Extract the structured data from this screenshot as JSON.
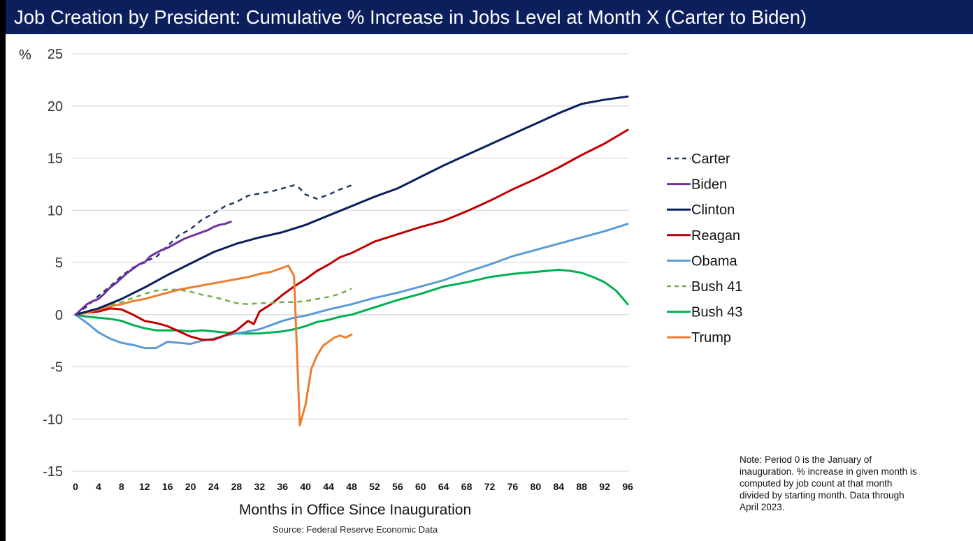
{
  "title": "Job Creation by President:  Cumulative % Increase in Jobs Level at Month X (Carter to Biden)",
  "note": "Note:  Period 0 is the January of inauguration.  % increase in given month is computed by job count at that month divided by starting month.  Data through April 2023.",
  "source": "Source:  Federal Reserve Economic Data",
  "chart_data": {
    "type": "line",
    "title": "Job Creation by President:  Cumulative % Increase in Jobs Level at Month X (Carter to Biden)",
    "xlabel": "Months in Office Since Inauguration",
    "ylabel": "%",
    "xlim": [
      0,
      96
    ],
    "ylim": [
      -15,
      25
    ],
    "x_ticks": [
      "0",
      "4",
      "8",
      "12",
      "16",
      "20",
      "24",
      "28",
      "32",
      "36",
      "40",
      "44",
      "48",
      "52",
      "56",
      "60",
      "64",
      "68",
      "72",
      "76",
      "80",
      "84",
      "88",
      "92",
      "96"
    ],
    "y_ticks": [
      "25",
      "20",
      "15",
      "10",
      "5",
      "0",
      "-5",
      "-10",
      "-15"
    ],
    "y_tick_values": [
      25,
      20,
      15,
      10,
      5,
      0,
      -5,
      -10,
      -15
    ],
    "grid": true,
    "legend_position": "right",
    "series": [
      {
        "name": "Carter",
        "color": "#1f3864",
        "dashed": true,
        "x": [
          0,
          2,
          4,
          6,
          8,
          10,
          12,
          14,
          16,
          18,
          20,
          22,
          24,
          26,
          27,
          28,
          30,
          32,
          34,
          36,
          38,
          39,
          40,
          42,
          44,
          46,
          48
        ],
        "values": [
          0,
          0.8,
          1.8,
          2.7,
          3.7,
          4.5,
          5.1,
          5.5,
          6.6,
          7.6,
          8.2,
          9.1,
          9.7,
          10.4,
          10.6,
          10.8,
          11.4,
          11.6,
          11.8,
          12.1,
          12.4,
          12.1,
          11.5,
          11.1,
          11.5,
          12.0,
          12.4
        ]
      },
      {
        "name": "Biden",
        "color": "#7030a0",
        "dashed": false,
        "x": [
          0,
          1,
          2,
          3,
          4,
          5,
          6,
          7,
          8,
          9,
          10,
          11,
          12,
          13,
          14,
          15,
          16,
          17,
          18,
          19,
          20,
          21,
          22,
          23,
          24,
          25,
          26,
          27
        ],
        "values": [
          0,
          0.5,
          1.0,
          1.3,
          1.5,
          2.0,
          2.6,
          3.0,
          3.5,
          4.0,
          4.4,
          4.8,
          5.0,
          5.6,
          5.9,
          6.2,
          6.4,
          6.7,
          7.0,
          7.3,
          7.5,
          7.7,
          7.9,
          8.1,
          8.4,
          8.6,
          8.7,
          8.9
        ]
      },
      {
        "name": "Clinton",
        "color": "#0b1f5c",
        "dashed": false,
        "x": [
          0,
          4,
          8,
          12,
          16,
          20,
          24,
          28,
          32,
          36,
          40,
          44,
          48,
          52,
          56,
          60,
          64,
          68,
          72,
          76,
          80,
          84,
          88,
          92,
          96
        ],
        "values": [
          0,
          0.6,
          1.5,
          2.6,
          3.8,
          4.9,
          6.0,
          6.8,
          7.4,
          7.9,
          8.6,
          9.5,
          10.4,
          11.3,
          12.1,
          13.2,
          14.3,
          15.3,
          16.3,
          17.3,
          18.3,
          19.3,
          20.2,
          20.6,
          20.9
        ]
      },
      {
        "name": "Reagan",
        "color": "#c00000",
        "dashed": false,
        "x": [
          0,
          2,
          4,
          6,
          8,
          10,
          12,
          14,
          16,
          18,
          20,
          22,
          24,
          26,
          28,
          30,
          31,
          32,
          34,
          36,
          38,
          40,
          42,
          44,
          46,
          48,
          52,
          56,
          60,
          64,
          68,
          72,
          76,
          80,
          84,
          88,
          92,
          96
        ],
        "values": [
          0,
          0.2,
          0.3,
          0.6,
          0.5,
          0.0,
          -0.6,
          -0.8,
          -1.1,
          -1.6,
          -2.1,
          -2.4,
          -2.4,
          -2.0,
          -1.5,
          -0.6,
          -0.9,
          0.3,
          1.0,
          1.9,
          2.7,
          3.4,
          4.2,
          4.8,
          5.5,
          5.9,
          7.0,
          7.7,
          8.4,
          9.0,
          9.9,
          10.9,
          12.0,
          13.0,
          14.1,
          15.3,
          16.4,
          17.7
        ]
      },
      {
        "name": "Obama",
        "color": "#5b9bd5",
        "dashed": false,
        "x": [
          0,
          2,
          4,
          6,
          8,
          10,
          12,
          14,
          16,
          18,
          20,
          22,
          24,
          26,
          28,
          30,
          32,
          34,
          36,
          38,
          40,
          44,
          48,
          52,
          56,
          60,
          64,
          68,
          72,
          76,
          80,
          84,
          88,
          92,
          96
        ],
        "values": [
          0,
          -0.8,
          -1.7,
          -2.3,
          -2.7,
          -2.9,
          -3.2,
          -3.2,
          -2.6,
          -2.7,
          -2.8,
          -2.5,
          -2.3,
          -2.0,
          -1.8,
          -1.6,
          -1.4,
          -1.0,
          -0.6,
          -0.3,
          -0.1,
          0.5,
          1.0,
          1.6,
          2.1,
          2.7,
          3.3,
          4.1,
          4.8,
          5.6,
          6.2,
          6.8,
          7.4,
          8.0,
          8.7
        ]
      },
      {
        "name": "Bush 41",
        "color": "#70ad47",
        "dashed": true,
        "x": [
          0,
          2,
          4,
          6,
          8,
          10,
          12,
          14,
          16,
          18,
          20,
          22,
          24,
          26,
          28,
          30,
          32,
          34,
          36,
          38,
          40,
          42,
          44,
          46,
          48
        ],
        "values": [
          0,
          0.3,
          0.6,
          0.9,
          1.2,
          1.6,
          2.0,
          2.3,
          2.4,
          2.4,
          2.2,
          1.9,
          1.7,
          1.4,
          1.1,
          1.0,
          1.1,
          1.1,
          1.2,
          1.2,
          1.3,
          1.5,
          1.7,
          2.0,
          2.5
        ]
      },
      {
        "name": "Bush 43",
        "color": "#00b050",
        "dashed": false,
        "x": [
          0,
          2,
          4,
          6,
          8,
          10,
          12,
          14,
          16,
          18,
          20,
          22,
          24,
          26,
          28,
          30,
          32,
          34,
          36,
          38,
          40,
          42,
          44,
          46,
          48,
          52,
          56,
          60,
          64,
          68,
          72,
          76,
          80,
          84,
          86,
          88,
          90,
          92,
          94,
          96
        ],
        "values": [
          0,
          -0.2,
          -0.3,
          -0.4,
          -0.6,
          -1.0,
          -1.3,
          -1.5,
          -1.5,
          -1.5,
          -1.6,
          -1.5,
          -1.6,
          -1.7,
          -1.8,
          -1.8,
          -1.8,
          -1.7,
          -1.6,
          -1.4,
          -1.1,
          -0.7,
          -0.5,
          -0.2,
          0.0,
          0.7,
          1.4,
          2.0,
          2.7,
          3.1,
          3.6,
          3.9,
          4.1,
          4.3,
          4.2,
          4.0,
          3.6,
          3.1,
          2.3,
          1.0
        ]
      },
      {
        "name": "Trump",
        "color": "#ed7d31",
        "dashed": false,
        "x": [
          0,
          2,
          4,
          6,
          8,
          10,
          12,
          14,
          16,
          18,
          20,
          22,
          24,
          26,
          28,
          30,
          32,
          34,
          36,
          37,
          38,
          39,
          40,
          41,
          42,
          43,
          44,
          45,
          46,
          47,
          48
        ],
        "values": [
          0,
          0.2,
          0.5,
          0.8,
          1.0,
          1.3,
          1.5,
          1.8,
          2.1,
          2.4,
          2.6,
          2.8,
          3.0,
          3.2,
          3.4,
          3.6,
          3.9,
          4.1,
          4.5,
          4.7,
          3.7,
          -10.6,
          -8.6,
          -5.2,
          -3.9,
          -3.0,
          -2.6,
          -2.2,
          -2.0,
          -2.2,
          -1.9
        ]
      }
    ]
  }
}
